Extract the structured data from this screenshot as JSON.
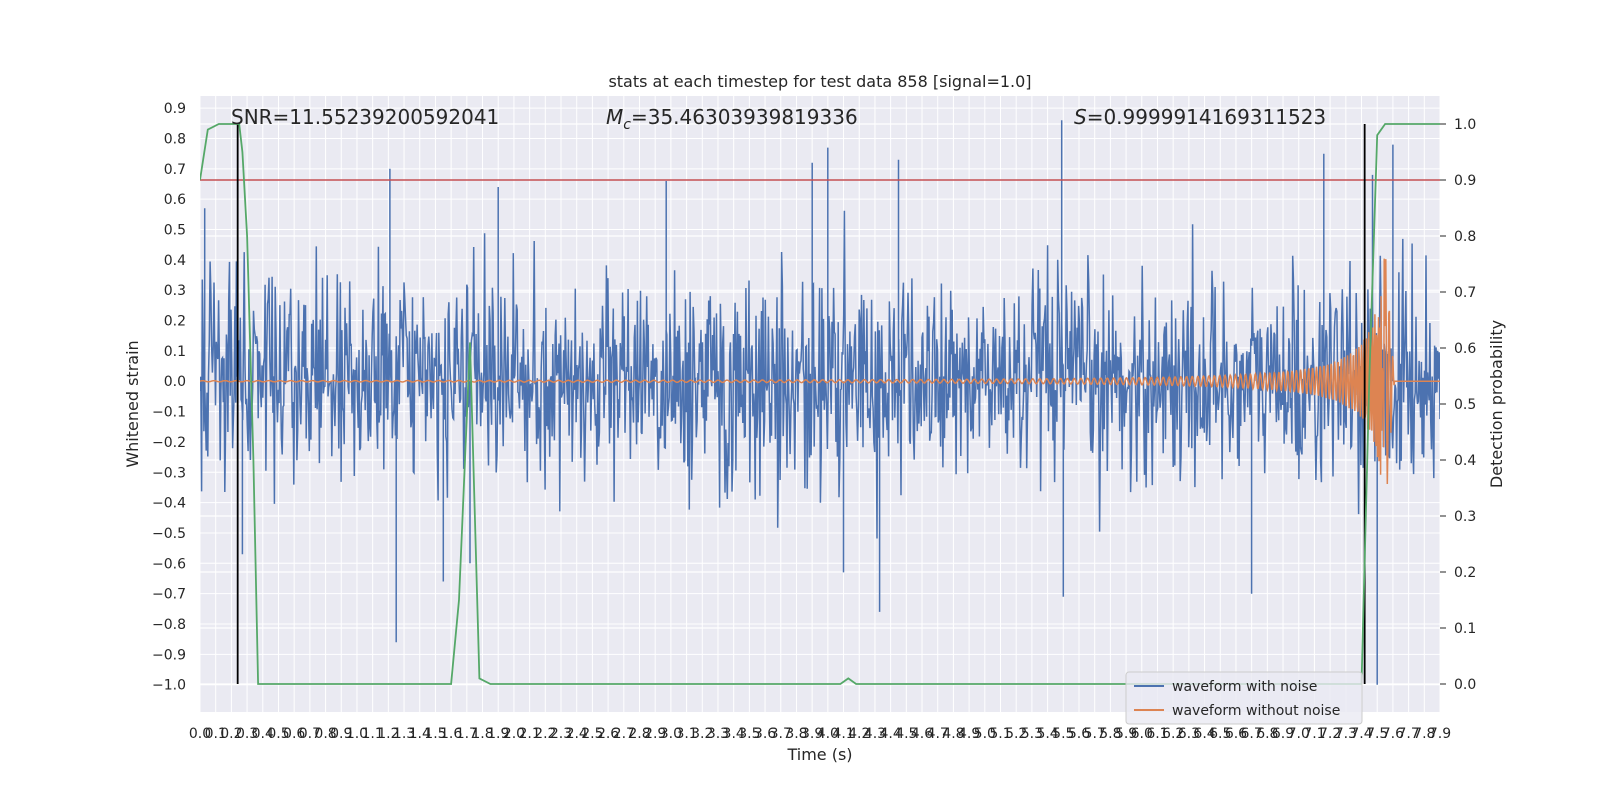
{
  "chart_data": {
    "type": "line",
    "title": "stats at each timestep for test data 858 [signal=1.0]",
    "xlabel": "Time (s)",
    "ylabel_left": "Whitened strain",
    "ylabel_right": "Detection probability",
    "xlim": [
      0.0,
      7.9
    ],
    "ylim_left": [
      -1.09,
      0.94
    ],
    "ylim_right": [
      -0.05,
      1.05
    ],
    "x_ticks": [
      "0.0",
      "0.1",
      "0.2",
      "0.3",
      "0.4",
      "0.5",
      "0.6",
      "0.7",
      "0.8",
      "0.9",
      "1.0",
      "1.1",
      "1.2",
      "1.3",
      "1.4",
      "1.5",
      "1.6",
      "1.7",
      "1.8",
      "1.9",
      "2.0",
      "2.1",
      "2.2",
      "2.3",
      "2.4",
      "2.5",
      "2.6",
      "2.7",
      "2.8",
      "2.9",
      "3.0",
      "3.1",
      "3.2",
      "3.3",
      "3.4",
      "3.5",
      "3.6",
      "3.7",
      "3.8",
      "3.9",
      "4.0",
      "4.1",
      "4.2",
      "4.3",
      "4.4",
      "4.5",
      "4.6",
      "4.7",
      "4.8",
      "4.9",
      "5.0",
      "5.1",
      "5.2",
      "5.3",
      "5.4",
      "5.5",
      "5.6",
      "5.7",
      "5.8",
      "5.9",
      "6.0",
      "6.1",
      "6.2",
      "6.3",
      "6.4",
      "6.5",
      "6.6",
      "6.7",
      "6.8",
      "6.9",
      "7.0",
      "7.1",
      "7.2",
      "7.3",
      "7.4",
      "7.5",
      "7.6",
      "7.7",
      "7.8",
      "7.9"
    ],
    "y_ticks_left": [
      "0.9",
      "0.8",
      "0.7",
      "0.6",
      "0.5",
      "0.4",
      "0.3",
      "0.2",
      "0.1",
      "0.0",
      "−0.1",
      "−0.2",
      "−0.3",
      "−0.4",
      "−0.5",
      "−0.6",
      "−0.7",
      "−0.8",
      "−0.9",
      "−1.0"
    ],
    "y_ticks_right": [
      "1.0",
      "0.9",
      "0.8",
      "0.7",
      "0.6",
      "0.5",
      "0.4",
      "0.3",
      "0.2",
      "0.1",
      "0.0"
    ],
    "annotations": {
      "snr": "SNR=11.55239200592041",
      "mc_prefix": "M",
      "mc_sub": "c",
      "mc_value": "=35.46303939819336",
      "s_prefix": "S",
      "s_value": "=0.9999914169311523"
    },
    "threshold_right": 0.9,
    "vlines_x": [
      0.24,
      7.42
    ],
    "noise_envelope": {
      "description_free": true,
      "typical_upper": 0.3,
      "typical_lower": -0.3,
      "peaks": [
        {
          "x": 0.03,
          "y": 0.57
        },
        {
          "x": 0.24,
          "y": 0.83
        },
        {
          "x": 0.27,
          "y": -0.57
        },
        {
          "x": 1.25,
          "y": -0.86
        },
        {
          "x": 1.21,
          "y": 0.7
        },
        {
          "x": 1.55,
          "y": -0.66
        },
        {
          "x": 1.72,
          "y": -0.6
        },
        {
          "x": 1.9,
          "y": 0.64
        },
        {
          "x": 2.97,
          "y": 0.66
        },
        {
          "x": 3.9,
          "y": 0.72
        },
        {
          "x": 4.0,
          "y": 0.77
        },
        {
          "x": 4.1,
          "y": -0.63
        },
        {
          "x": 4.33,
          "y": -0.76
        },
        {
          "x": 4.45,
          "y": 0.73
        },
        {
          "x": 5.49,
          "y": 0.86
        },
        {
          "x": 5.5,
          "y": -0.71
        },
        {
          "x": 6.7,
          "y": -0.7
        },
        {
          "x": 7.16,
          "y": 0.75
        },
        {
          "x": 7.6,
          "y": 0.78
        },
        {
          "x": 7.5,
          "y": -1.0
        },
        {
          "x": 7.47,
          "y": 0.68
        }
      ]
    },
    "series": [
      {
        "name": "waveform with noise",
        "color": "#4c72b0"
      },
      {
        "name": "waveform without noise",
        "color": "#dd8452"
      },
      {
        "color": "#55a868",
        "x": [
          0.0,
          0.05,
          0.12,
          0.25,
          0.27,
          0.3,
          0.34,
          0.37,
          0.4,
          1.55,
          1.6,
          1.65,
          1.72,
          1.78,
          1.85,
          4.08,
          4.13,
          4.18,
          7.4,
          7.45,
          7.5,
          7.55,
          7.9
        ],
        "y": [
          0.9,
          0.99,
          1.0,
          1.0,
          0.95,
          0.8,
          0.4,
          0.0,
          0.0,
          0.0,
          0.0,
          0.15,
          0.61,
          0.01,
          0.0,
          0.0,
          0.01,
          0.0,
          0.0,
          0.55,
          0.98,
          1.0,
          1.0
        ]
      }
    ],
    "threshold_color": "#c44e52",
    "vline_color": "#000000",
    "background": "#eaeaf2",
    "legend_placement": "lower-right",
    "grid": true
  }
}
